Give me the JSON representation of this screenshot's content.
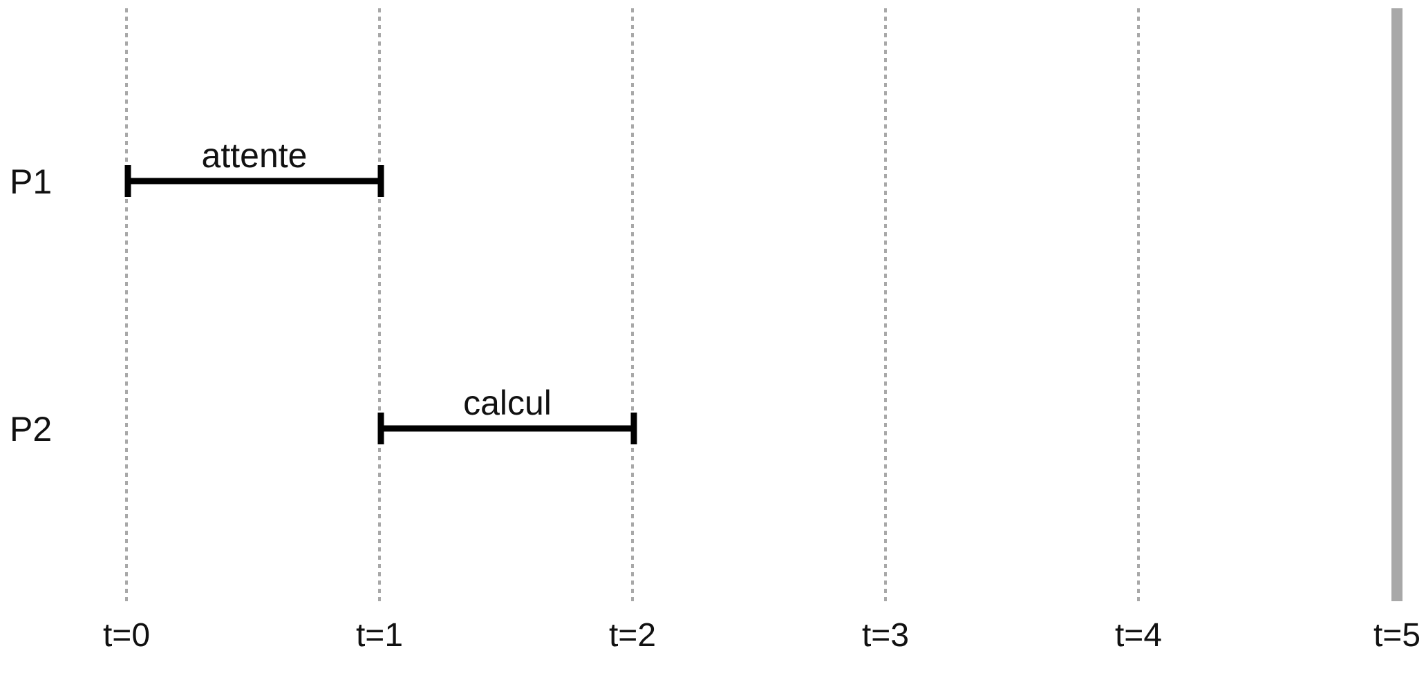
{
  "diagram": {
    "type": "timeline",
    "processes": [
      {
        "label": "P1"
      },
      {
        "label": "P2"
      }
    ],
    "ticks": [
      {
        "label": "t=0",
        "t": 0
      },
      {
        "label": "t=1",
        "t": 1
      },
      {
        "label": "t=2",
        "t": 2
      },
      {
        "label": "t=3",
        "t": 3
      },
      {
        "label": "t=4",
        "t": 4
      },
      {
        "label": "t=5",
        "t": 5
      }
    ],
    "intervals": [
      {
        "process": "P1",
        "label": "attente",
        "start": 0,
        "end": 1
      },
      {
        "process": "P2",
        "label": "calcul",
        "start": 1,
        "end": 2
      }
    ],
    "current_time": 5,
    "colors": {
      "gridline": "#a8a8a8",
      "current_time_line": "#a8a8a8",
      "interval": "#000000",
      "text": "#111111"
    }
  }
}
